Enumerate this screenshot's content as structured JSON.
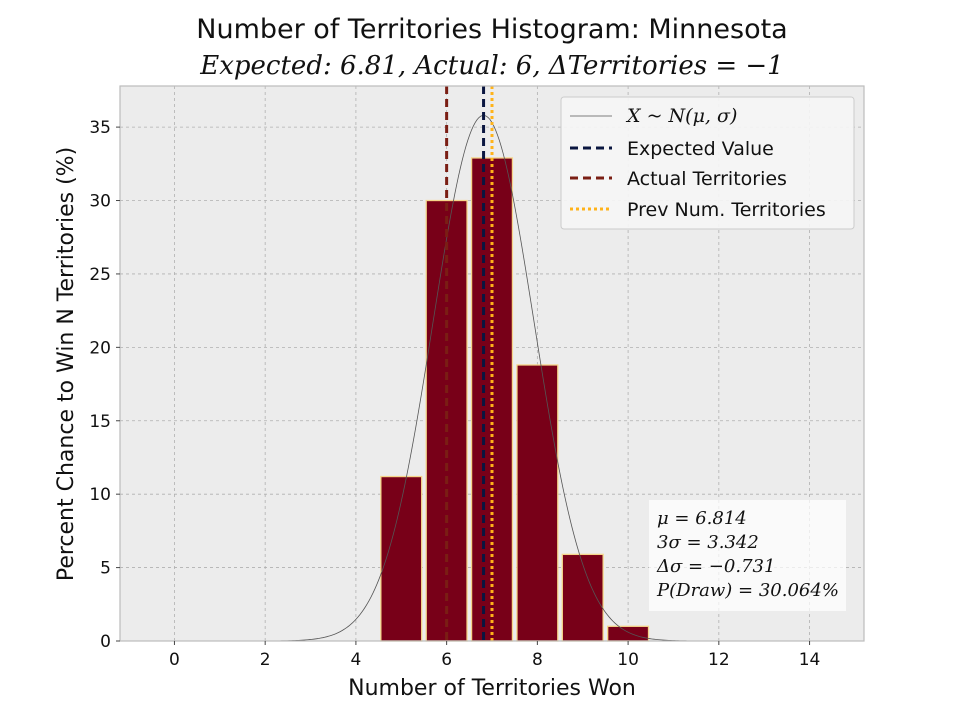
{
  "chart_data": {
    "type": "bar",
    "title": "Number of Territories Histogram: Minnesota",
    "subtitle": "Expected: 6.81, Actual: 6, ΔTerritories = −1",
    "xlabel": "Number of Territories Won",
    "ylabel": "Percent Chance to Win N Territories (%)",
    "xlim": [
      -1.2,
      15.2
    ],
    "ylim": [
      0,
      37.8
    ],
    "xticks": [
      0,
      2,
      4,
      6,
      8,
      10,
      12,
      14
    ],
    "yticks": [
      0,
      5,
      10,
      15,
      20,
      25,
      30,
      35
    ],
    "grid": true,
    "bars": {
      "x": [
        5,
        6,
        7,
        8,
        9,
        10
      ],
      "values": [
        11.2,
        30.0,
        32.9,
        18.8,
        5.9,
        1.0
      ],
      "fill": "#780018",
      "edge": "#f5d58a"
    },
    "normal_curve": {
      "mu": 6.814,
      "sigma": 1.114,
      "peak": 35.8,
      "color": "#555555"
    },
    "vlines": [
      {
        "name": "expected",
        "x": 6.814,
        "color": "#0a1640"
      },
      {
        "name": "actual",
        "x": 6,
        "color": "#7a1e14"
      },
      {
        "name": "previous",
        "x": 7,
        "color": "#ffb31a"
      }
    ],
    "legend": {
      "placement": "top-right",
      "entries": [
        {
          "label": "X ~ N(μ, σ)",
          "style": "thin-line",
          "color": "#555555"
        },
        {
          "label": "Expected Value",
          "style": "dashed",
          "color": "#0a1640"
        },
        {
          "label": "Actual Territories",
          "style": "dashed",
          "color": "#7a1e14"
        },
        {
          "label": "Prev Num. Territories",
          "style": "dotted",
          "color": "#ffb31a"
        }
      ]
    },
    "stats_box": {
      "placement": "bottom-right",
      "lines": [
        "μ = 6.814",
        "3σ = 3.342",
        "Δσ = −0.731",
        "P(Draw) = 30.064%"
      ]
    },
    "colors": {
      "background": "#ececec",
      "grid": "#b0b0b0",
      "frame": "#bcbcbc"
    }
  }
}
